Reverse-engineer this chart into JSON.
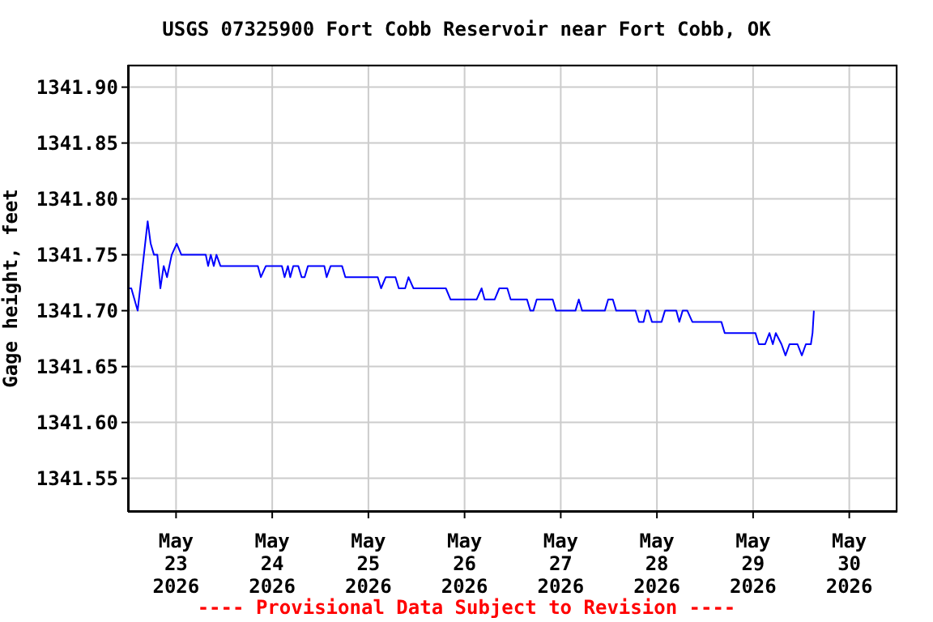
{
  "chart_data": {
    "type": "line",
    "title": "USGS 07325900 Fort Cobb Reservoir near Fort Cobb, OK",
    "ylabel": "Gage height, feet",
    "annotations": [
      "---- Provisional Data Subject to Revision ----"
    ],
    "xlim": [
      "2026-05-22T12:00",
      "2026-05-30T12:00"
    ],
    "xticks": [
      {
        "value": "2026-05-23",
        "label": "May\n23\n2026"
      },
      {
        "value": "2026-05-24",
        "label": "May\n24\n2026"
      },
      {
        "value": "2026-05-25",
        "label": "May\n25\n2026"
      },
      {
        "value": "2026-05-26",
        "label": "May\n26\n2026"
      },
      {
        "value": "2026-05-27",
        "label": "May\n27\n2026"
      },
      {
        "value": "2026-05-28",
        "label": "May\n28\n2026"
      },
      {
        "value": "2026-05-29",
        "label": "May\n29\n2026"
      },
      {
        "value": "2026-05-30",
        "label": "May\n30\n2026"
      }
    ],
    "ylim": [
      1341.52,
      1341.92
    ],
    "yticks": [
      {
        "value": 1341.55,
        "label": "1341.55"
      },
      {
        "value": 1341.6,
        "label": "1341.60"
      },
      {
        "value": 1341.65,
        "label": "1341.65"
      },
      {
        "value": 1341.7,
        "label": "1341.70"
      },
      {
        "value": 1341.75,
        "label": "1341.75"
      },
      {
        "value": 1341.8,
        "label": "1341.80"
      },
      {
        "value": 1341.85,
        "label": "1341.85"
      },
      {
        "value": 1341.9,
        "label": "1341.90"
      }
    ],
    "grid": true,
    "legend": false,
    "marker": "none",
    "line_style": "solid",
    "series": [
      {
        "color": "#0000ff",
        "x": [
          "2026-05-22T12:00",
          "2026-05-22T12:50",
          "2026-05-22T14:25",
          "2026-05-22T15:40",
          "2026-05-22T16:55",
          "2026-05-22T17:40",
          "2026-05-22T18:30",
          "2026-05-22T19:20",
          "2026-05-22T20:05",
          "2026-05-22T20:55",
          "2026-05-22T21:45",
          "2026-05-22T22:55",
          "2026-05-23T00:10",
          "2026-05-23T01:20",
          "2026-05-23T07:25",
          "2026-05-23T08:00",
          "2026-05-23T08:40",
          "2026-05-23T09:25",
          "2026-05-23T10:05",
          "2026-05-23T11:05",
          "2026-05-23T20:25",
          "2026-05-23T21:10",
          "2026-05-23T22:25",
          "2026-05-24T02:25",
          "2026-05-24T03:05",
          "2026-05-24T03:55",
          "2026-05-24T04:30",
          "2026-05-24T05:15",
          "2026-05-24T06:30",
          "2026-05-24T07:20",
          "2026-05-24T08:05",
          "2026-05-24T08:55",
          "2026-05-24T13:00",
          "2026-05-24T13:35",
          "2026-05-24T14:35",
          "2026-05-24T17:25",
          "2026-05-24T18:15",
          "2026-05-25T02:20",
          "2026-05-25T03:10",
          "2026-05-25T04:20",
          "2026-05-25T06:45",
          "2026-05-25T07:35",
          "2026-05-25T09:10",
          "2026-05-25T10:00",
          "2026-05-25T11:15",
          "2026-05-25T19:20",
          "2026-05-25T20:30",
          "2026-05-26T03:00",
          "2026-05-26T04:15",
          "2026-05-26T05:00",
          "2026-05-26T07:30",
          "2026-05-26T08:40",
          "2026-05-26T10:40",
          "2026-05-26T11:30",
          "2026-05-26T15:35",
          "2026-05-26T16:25",
          "2026-05-26T17:10",
          "2026-05-26T18:00",
          "2026-05-26T22:00",
          "2026-05-26T22:50",
          "2026-05-27T03:40",
          "2026-05-27T04:30",
          "2026-05-27T05:20",
          "2026-05-27T11:00",
          "2026-05-27T11:50",
          "2026-05-27T13:00",
          "2026-05-27T13:50",
          "2026-05-27T18:40",
          "2026-05-27T19:30",
          "2026-05-27T20:40",
          "2026-05-27T21:20",
          "2026-05-27T21:55",
          "2026-05-27T22:45",
          "2026-05-28T01:10",
          "2026-05-28T02:00",
          "2026-05-28T04:50",
          "2026-05-28T05:35",
          "2026-05-28T06:25",
          "2026-05-28T07:35",
          "2026-05-28T08:50",
          "2026-05-28T16:05",
          "2026-05-28T16:55",
          "2026-05-29T00:35",
          "2026-05-29T01:25",
          "2026-05-29T03:00",
          "2026-05-29T04:05",
          "2026-05-29T04:55",
          "2026-05-29T05:40",
          "2026-05-29T07:05",
          "2026-05-29T08:05",
          "2026-05-29T09:05",
          "2026-05-29T11:05",
          "2026-05-29T12:10",
          "2026-05-29T13:10",
          "2026-05-29T14:25",
          "2026-05-29T14:50",
          "2026-05-29T15:10"
        ],
        "values": [
          1341.72,
          1341.72,
          1341.7,
          1341.74,
          1341.78,
          1341.76,
          1341.75,
          1341.75,
          1341.72,
          1341.74,
          1341.73,
          1341.75,
          1341.76,
          1341.75,
          1341.75,
          1341.74,
          1341.75,
          1341.74,
          1341.75,
          1341.74,
          1341.74,
          1341.73,
          1341.74,
          1341.74,
          1341.73,
          1341.74,
          1341.73,
          1341.74,
          1341.74,
          1341.73,
          1341.73,
          1341.74,
          1341.74,
          1341.73,
          1341.74,
          1341.74,
          1341.73,
          1341.73,
          1341.72,
          1341.73,
          1341.73,
          1341.72,
          1341.72,
          1341.73,
          1341.72,
          1341.72,
          1341.71,
          1341.71,
          1341.72,
          1341.71,
          1341.71,
          1341.72,
          1341.72,
          1341.71,
          1341.71,
          1341.7,
          1341.7,
          1341.71,
          1341.71,
          1341.7,
          1341.7,
          1341.71,
          1341.7,
          1341.7,
          1341.71,
          1341.71,
          1341.7,
          1341.7,
          1341.69,
          1341.69,
          1341.7,
          1341.7,
          1341.69,
          1341.69,
          1341.7,
          1341.7,
          1341.69,
          1341.7,
          1341.7,
          1341.69,
          1341.69,
          1341.68,
          1341.68,
          1341.67,
          1341.67,
          1341.68,
          1341.67,
          1341.68,
          1341.67,
          1341.66,
          1341.67,
          1341.67,
          1341.66,
          1341.67,
          1341.67,
          1341.68,
          1341.7
        ]
      }
    ]
  }
}
